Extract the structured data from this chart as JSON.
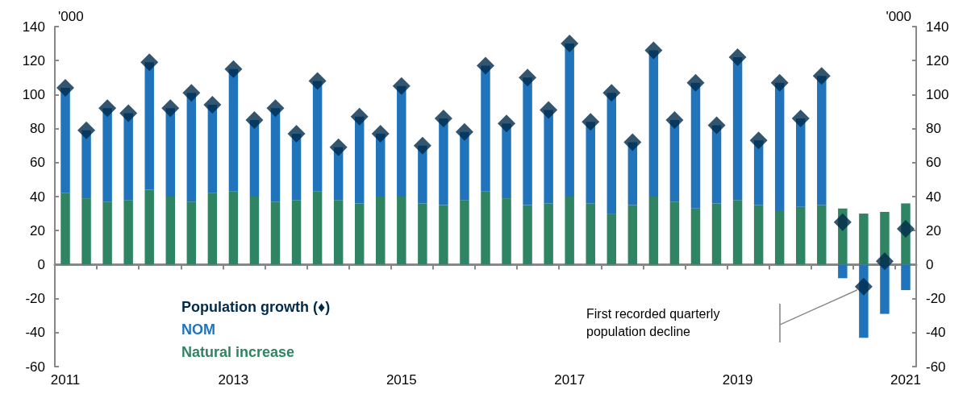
{
  "chart_data": {
    "type": "bar",
    "stacked": true,
    "categories": [
      "2011",
      null,
      null,
      null,
      null,
      null,
      null,
      null,
      "2013",
      null,
      null,
      null,
      null,
      null,
      null,
      null,
      "2015",
      null,
      null,
      null,
      null,
      null,
      null,
      null,
      "2017",
      null,
      null,
      null,
      null,
      null,
      null,
      null,
      "2019",
      null,
      null,
      null,
      null,
      null,
      null,
      null,
      "2021"
    ],
    "series": [
      {
        "name": "Natural increase",
        "color": "#2e8463",
        "values": [
          42,
          39,
          37,
          38,
          44,
          40,
          37,
          42,
          43,
          40,
          37,
          38,
          43,
          38,
          36,
          40,
          40,
          36,
          35,
          38,
          43,
          39,
          35,
          36,
          40,
          36,
          30,
          35,
          40,
          37,
          33,
          36,
          38,
          35,
          32,
          34,
          35,
          33,
          30,
          31,
          36
        ]
      },
      {
        "name": "NOM",
        "color": "#1f74bc",
        "values": [
          62,
          40,
          55,
          51,
          75,
          52,
          64,
          52,
          72,
          45,
          55,
          39,
          65,
          31,
          51,
          37,
          65,
          34,
          51,
          40,
          74,
          44,
          75,
          55,
          90,
          48,
          71,
          37,
          86,
          48,
          74,
          46,
          84,
          38,
          75,
          52,
          76,
          -8,
          -43,
          -29,
          -15
        ]
      },
      {
        "name": "Population growth (♦)",
        "type": "scatter",
        "color": "#002a4a",
        "values": [
          104,
          79,
          92,
          89,
          119,
          92,
          101,
          94,
          115,
          85,
          92,
          77,
          108,
          69,
          87,
          77,
          105,
          70,
          86,
          78,
          117,
          83,
          110,
          91,
          130,
          84,
          101,
          72,
          126,
          85,
          107,
          82,
          122,
          73,
          107,
          86,
          111,
          25,
          -13,
          2,
          21
        ]
      }
    ],
    "marker": "diamond",
    "ylim": [
      -60,
      140
    ],
    "yticks": [
      -60,
      -40,
      -20,
      0,
      20,
      40,
      60,
      80,
      100,
      120,
      140
    ],
    "y2lim": [
      -60,
      140
    ],
    "y2ticks": [
      -60,
      -40,
      -20,
      0,
      20,
      40,
      60,
      80,
      100,
      120,
      140
    ],
    "ylabel": "'000",
    "y2label": "'000",
    "legend": "bottom left",
    "annotations": [
      "First recorded quarterly population decline"
    ]
  }
}
